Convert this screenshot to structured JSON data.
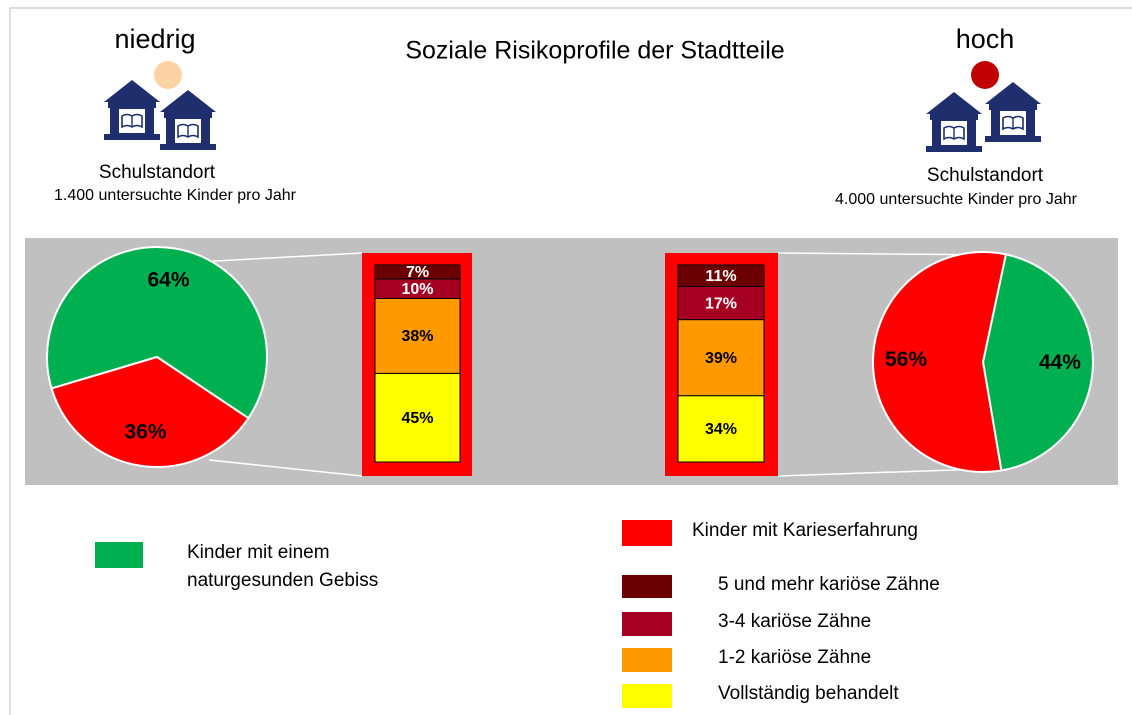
{
  "header": {
    "title": "Soziale Risikoprofile der Stadtteile",
    "low": "niedrig",
    "high": "hoch",
    "left_site": {
      "label": "Schulstandort",
      "count": "1.400 untersuchte Kinder pro Jahr"
    },
    "right_site": {
      "label": "Schulstandort",
      "count": "4.000 untersuchte Kinder pro Jahr"
    }
  },
  "legend": [
    {
      "name": "Kinder mit einem naturgesunden Gebiss",
      "color": "#00b050"
    },
    {
      "name": "Kinder mit Karieserfahrung",
      "color": "#ff0000"
    },
    {
      "name": "5 und mehr kariöse Zähne",
      "color": "#6b0000"
    },
    {
      "name": "3-4 kariöse Zähne",
      "color": "#a50021"
    },
    {
      "name": "1-2 kariöse Zähne",
      "color": "#ff9900"
    },
    {
      "name": "Vollständig behandelt",
      "color": "#ffff00"
    }
  ],
  "chart_data": [
    {
      "type": "pie",
      "values": [
        64,
        36
      ],
      "value_labels": [
        "64%",
        "36%"
      ]
    },
    {
      "type": "stacked_bar",
      "values": [
        7,
        10,
        38,
        45
      ],
      "value_labels": [
        "7%",
        "10%",
        "38%",
        "45%"
      ]
    },
    {
      "type": "stacked_bar",
      "values": [
        11,
        17,
        39,
        34
      ],
      "value_labels": [
        "11%",
        "17%",
        "39%",
        "34%"
      ]
    },
    {
      "type": "pie",
      "values": [
        44,
        56
      ],
      "value_labels": [
        "44%",
        "56%"
      ]
    }
  ]
}
